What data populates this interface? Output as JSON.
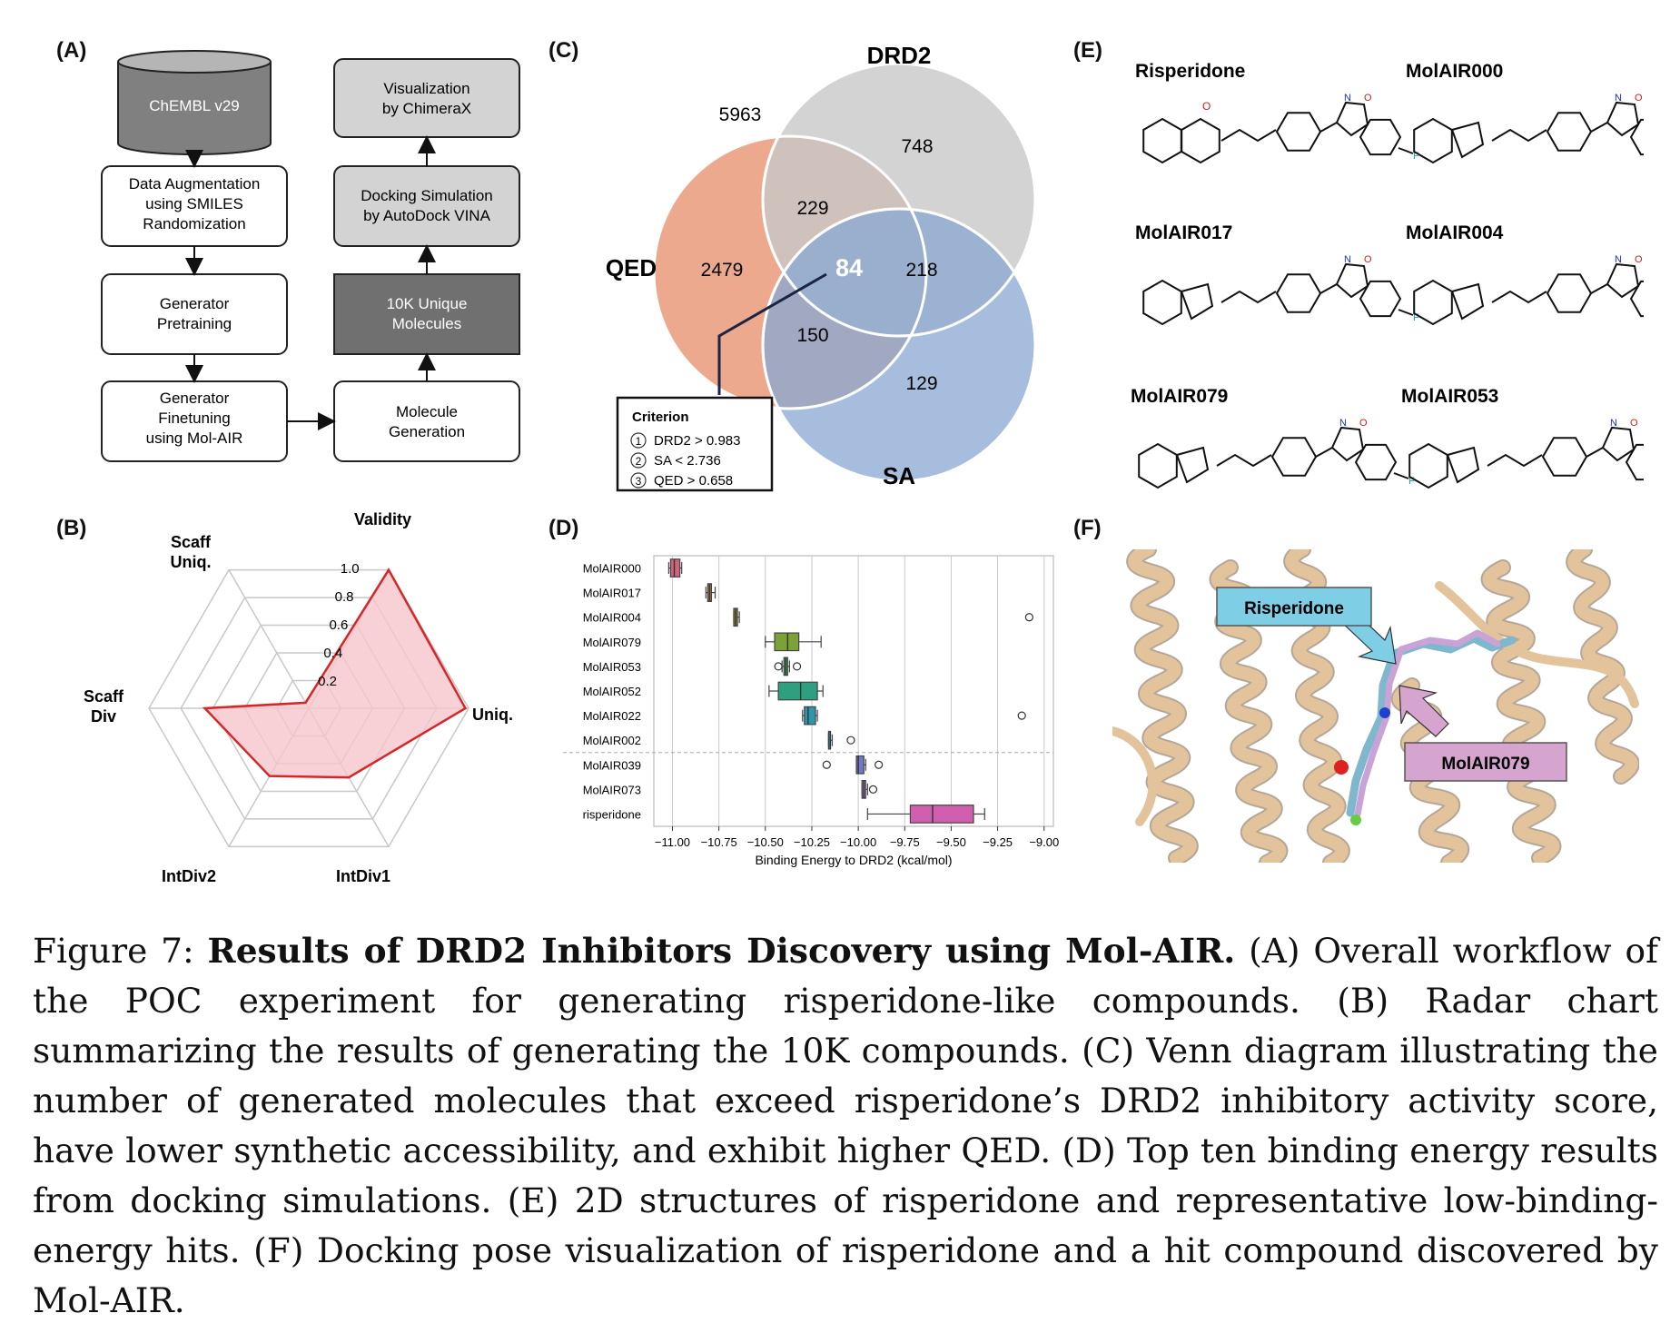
{
  "panels": {
    "A": {
      "label": "(A)",
      "db": "ChEMBL v29",
      "left": [
        [
          "Data Augmentation",
          "using SMILES",
          "Randomization"
        ],
        [
          "Generator",
          "Pretraining"
        ],
        [
          "Generator",
          "Finetuning",
          "using Mol-AIR"
        ]
      ],
      "right": [
        [
          "Molecule",
          "Generation"
        ],
        [
          "10K Unique",
          "Molecules"
        ],
        [
          "Docking Simulation",
          "by AutoDock VINA"
        ],
        [
          "Visualization",
          "by ChimeraX"
        ]
      ]
    },
    "B": {
      "label": "(B)",
      "axes": [
        {
          "label": [
            "Validity"
          ],
          "value": 1.0
        },
        {
          "label": [
            "Uniq."
          ],
          "value": 0.98
        },
        {
          "label": [
            "IntDiv1"
          ],
          "value": 0.5
        },
        {
          "label": [
            "IntDiv2"
          ],
          "value": 0.49
        },
        {
          "label": [
            "Scaff",
            "Div"
          ],
          "value": 0.65
        },
        {
          "label": [
            "Scaff",
            "Uniq."
          ],
          "value": 0.04
        }
      ],
      "ticks": [
        "1.0",
        "0.8",
        "0.6",
        "0.4",
        "0.2"
      ],
      "line_color": "#d62728",
      "fill_color": "#f6c6cc"
    },
    "C": {
      "label": "(C)",
      "set_labels": {
        "drd2": "DRD2",
        "qed": "QED",
        "sa": "SA"
      },
      "counts": {
        "outside": "5963",
        "drd2_only": "748",
        "qed_only": "2479",
        "sa_only": "129",
        "qed_drd2": "229",
        "drd2_sa": "218",
        "qed_sa": "150",
        "all": "84"
      },
      "criterion_title": "Criterion",
      "criteria": [
        {
          "num": "1",
          "text": "DRD2 > 0.983"
        },
        {
          "num": "2",
          "text": "SA < 2.736"
        },
        {
          "num": "3",
          "text": "QED > 0.658"
        }
      ],
      "colors": {
        "qed": "#eba587",
        "drd2": "#c9c9c9",
        "sa": "#89a8d4"
      }
    },
    "E": {
      "label": "(E)",
      "names": [
        "Risperidone",
        "MolAIR000",
        "MolAIR017",
        "MolAIR004",
        "MolAIR079",
        "MolAIR053"
      ]
    },
    "F": {
      "label": "(F)",
      "tag1": "Risperidone",
      "tag2": "MolAIR079",
      "tag1_color": "#7ecfe6",
      "tag2_color": "#d6a5cf",
      "protein_color": "#e2c39c"
    }
  },
  "chart_data": {
    "type": "box",
    "label": "(D)",
    "xlabel": "Binding Energy to DRD2 (kcal/mol)",
    "xlim": [
      -11.1,
      -8.95
    ],
    "xticks": [
      "−11.00",
      "−10.75",
      "−10.50",
      "−10.25",
      "−10.00",
      "−9.75",
      "−9.50",
      "−9.25",
      "−9.00"
    ],
    "xtick_values": [
      -11.0,
      -10.75,
      -10.5,
      -10.25,
      -10.0,
      -9.75,
      -9.5,
      -9.25,
      -9.0
    ],
    "categories": [
      "MolAIR000",
      "MolAIR017",
      "MolAIR004",
      "MolAIR079",
      "MolAIR053",
      "MolAIR052",
      "MolAIR022",
      "MolAIR002",
      "MolAIR039",
      "MolAIR073",
      "risperidone"
    ],
    "boxes": [
      {
        "min": -11.02,
        "q1": -11.01,
        "median": -10.99,
        "q3": -10.96,
        "max": -10.95,
        "outliers": [],
        "color": "#d0637a"
      },
      {
        "min": -10.82,
        "q1": -10.81,
        "median": -10.8,
        "q3": -10.79,
        "max": -10.77,
        "outliers": [],
        "color": "#a6752f"
      },
      {
        "min": -10.67,
        "q1": -10.67,
        "median": -10.66,
        "q3": -10.65,
        "max": -10.64,
        "outliers": [
          -9.08
        ],
        "color": "#8e8a28"
      },
      {
        "min": -10.5,
        "q1": -10.45,
        "median": -10.38,
        "q3": -10.32,
        "max": -10.2,
        "outliers": [],
        "color": "#7ba237"
      },
      {
        "min": -10.41,
        "q1": -10.4,
        "median": -10.39,
        "q3": -10.38,
        "max": -10.37,
        "outliers": [
          -10.43,
          -10.33
        ],
        "color": "#37a05d"
      },
      {
        "min": -10.48,
        "q1": -10.43,
        "median": -10.31,
        "q3": -10.22,
        "max": -10.19,
        "outliers": [],
        "color": "#2fa07f"
      },
      {
        "min": -10.3,
        "q1": -10.29,
        "median": -10.27,
        "q3": -10.23,
        "max": -10.22,
        "outliers": [
          -9.12
        ],
        "color": "#2f97ad"
      },
      {
        "min": -10.16,
        "q1": -10.16,
        "median": -10.15,
        "q3": -10.15,
        "max": -10.14,
        "outliers": [
          -10.04
        ],
        "color": "#2f7f9e"
      },
      {
        "min": -10.01,
        "q1": -10.01,
        "median": -10.0,
        "q3": -9.97,
        "max": -9.96,
        "outliers": [
          -10.17,
          -9.89
        ],
        "color": "#6f79c7"
      },
      {
        "min": -9.98,
        "q1": -9.98,
        "median": -9.97,
        "q3": -9.96,
        "max": -9.95,
        "outliers": [
          -9.92
        ],
        "color": "#9a78c3"
      },
      {
        "min": -9.95,
        "q1": -9.72,
        "median": -9.6,
        "q3": -9.38,
        "max": -9.32,
        "outliers": [],
        "color": "#d15fb0"
      }
    ]
  },
  "caption": {
    "prefix": "Figure 7: ",
    "title": "Results of DRD2 Inhibitors Discovery using Mol-AIR.",
    "body": " (A) Overall workflow of the POC experiment for generating risperidone-like compounds. (B) Radar chart summarizing the results of generating the 10K compounds. (C) Venn diagram illustrating the number of generated molecules that exceed risperidone’s DRD2 inhibitory activity score, have lower synthetic accessibility, and exhibit higher QED. (D) Top ten binding energy results from docking simulations. (E) 2D structures of risperidone and representative low-binding-energy hits. (F) Docking pose visualization of risperidone and a hit compound discovered by Mol-AIR."
  }
}
